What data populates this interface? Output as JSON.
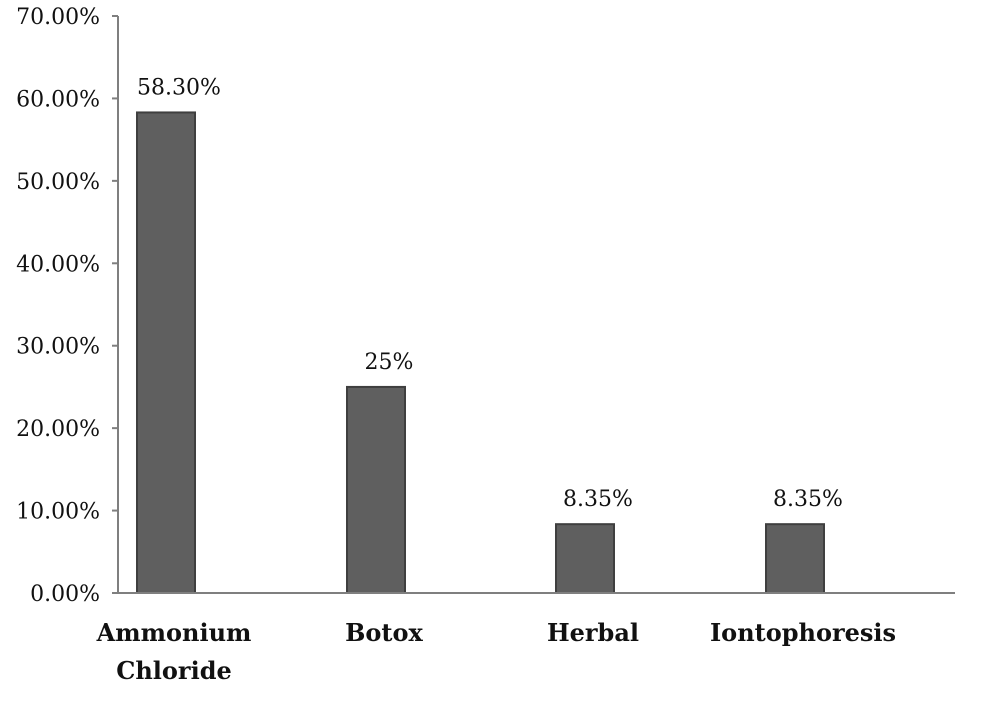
{
  "chart_data": {
    "type": "bar",
    "categories": [
      [
        "Ammonium",
        "Chloride"
      ],
      [
        "Botox"
      ],
      [
        "Herbal"
      ],
      [
        "Iontophoresis"
      ]
    ],
    "values": [
      58.3,
      25,
      8.35,
      8.35
    ],
    "data_labels": [
      "58.30%",
      "25%",
      "8.35%",
      "8.35%"
    ],
    "ylim": [
      0,
      70
    ],
    "y_ticks": [
      0,
      10,
      20,
      30,
      40,
      50,
      60,
      70
    ],
    "y_tick_labels": [
      "0.00%",
      "10.00%",
      "20.00%",
      "30.00%",
      "40.00%",
      "50.00%",
      "60.00%",
      "70.00%"
    ],
    "title": "",
    "xlabel": "",
    "ylabel": "",
    "grid": false,
    "legend": "none",
    "colors": {
      "bar_fill": "#5f5f5f",
      "bar_stroke": "#3f3f3f",
      "axis": "#7f7f7f"
    }
  }
}
